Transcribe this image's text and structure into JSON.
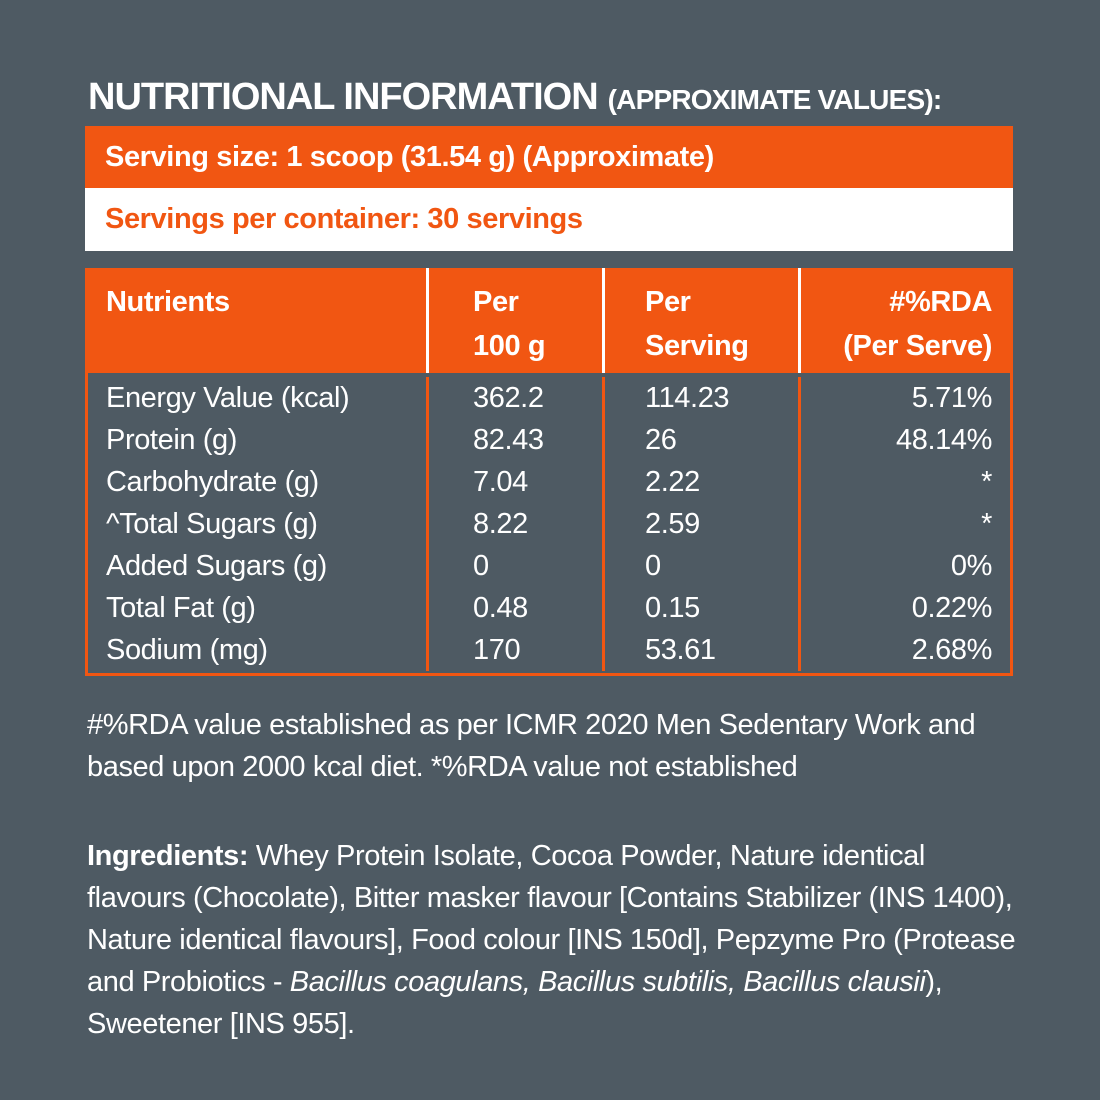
{
  "theme": {
    "background_color": "#4e5a63",
    "accent_orange": "#f15612",
    "text_white": "#ffffff"
  },
  "title": {
    "main": "NUTRITIONAL INFORMATION",
    "suffix": "(APPROXIMATE VALUES):"
  },
  "banners": {
    "serving_size": "Serving size: 1 scoop (31.54 g) (Approximate)",
    "servings_per_container": "Servings per container: 30 servings"
  },
  "table": {
    "headers": {
      "nutrients": {
        "line1": "Nutrients",
        "line2": ""
      },
      "per_100g": {
        "line1": "Per",
        "line2": "100 g"
      },
      "per_serving": {
        "line1": "Per",
        "line2": "Serving"
      },
      "rda": {
        "line1": "#%RDA",
        "line2": "(Per Serve)"
      }
    },
    "rows": [
      {
        "nutrient": "Energy Value (kcal)",
        "per_100g": "362.2",
        "per_serving": "114.23",
        "rda": "5.71%"
      },
      {
        "nutrient": "Protein (g)",
        "per_100g": "82.43",
        "per_serving": "26",
        "rda": "48.14%"
      },
      {
        "nutrient": "Carbohydrate (g)",
        "per_100g": "7.04",
        "per_serving": "2.22",
        "rda": "*"
      },
      {
        "nutrient": "^Total Sugars (g)",
        "per_100g": "8.22",
        "per_serving": "2.59",
        "rda": "*"
      },
      {
        "nutrient": "Added Sugars (g)",
        "per_100g": "0",
        "per_serving": "0",
        "rda": "0%"
      },
      {
        "nutrient": "Total Fat (g)",
        "per_100g": "0.48",
        "per_serving": "0.15",
        "rda": "0.22%"
      },
      {
        "nutrient": "Sodium (mg)",
        "per_100g": "170",
        "per_serving": "53.61",
        "rda": "2.68%"
      }
    ]
  },
  "footnote": "#%RDA value established as per ICMR 2020 Men Sedentary Work and based upon 2000 kcal diet. *%RDA value not established",
  "ingredients": {
    "label": "Ingredients:",
    "text_before_italic": " Whey Protein Isolate, Cocoa Powder, Nature identical flavours (Chocolate), Bitter masker flavour [Contains Stabilizer (INS 1400), Nature identical flavours], Food colour [INS 150d], Pepzyme Pro (Protease and Probiotics - ",
    "italic_species": "Bacillus coagulans, Bacillus subtilis, Bacillus clausii",
    "text_after_italic": "), Sweetener [INS 955]."
  }
}
